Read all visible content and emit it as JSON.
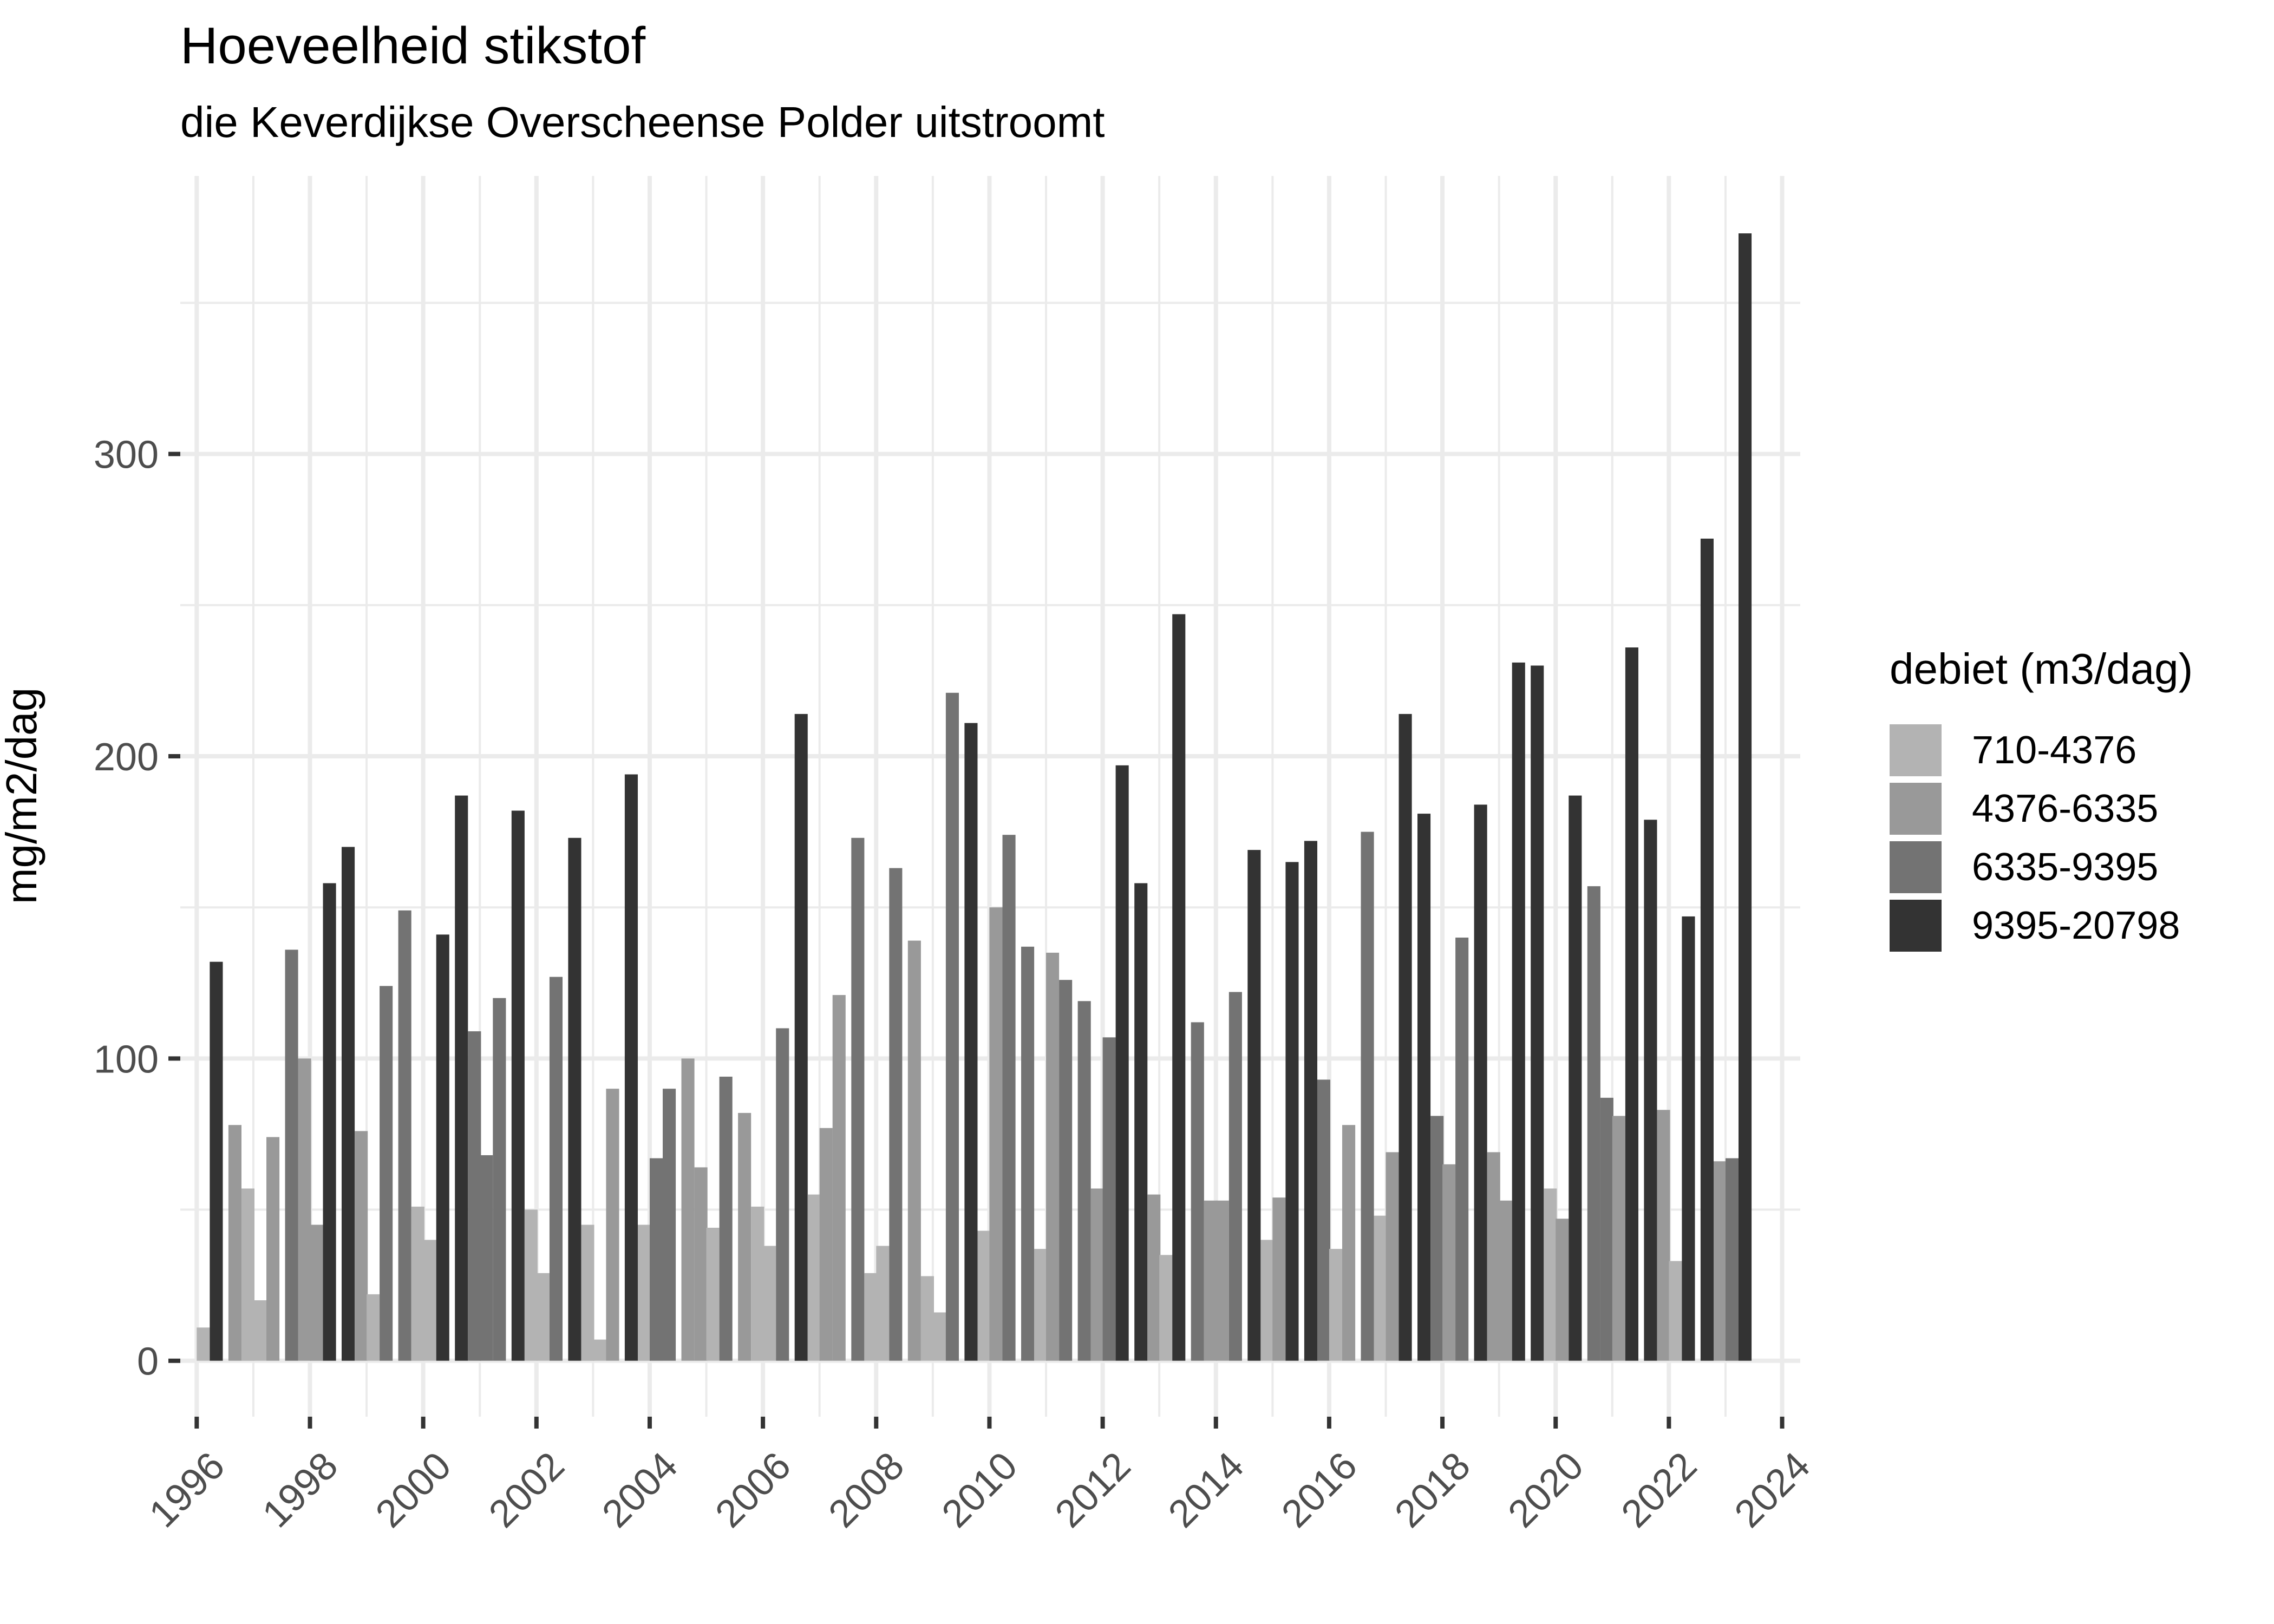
{
  "chart_data": {
    "type": "bar",
    "title": "Hoeveelheid stikstof",
    "subtitle": "die Keverdijkse Overscheense Polder uitstroomt",
    "xlabel": "",
    "ylabel": "mg/m2/dag",
    "xlim": [
      1995.71,
      2024.32
    ],
    "ylim": [
      -18.5,
      392
    ],
    "x_ticks": [
      1996,
      1998,
      2000,
      2002,
      2004,
      2006,
      2008,
      2010,
      2012,
      2014,
      2016,
      2018,
      2020,
      2022,
      2024
    ],
    "y_ticks": [
      0,
      100,
      200,
      300
    ],
    "y_minor_gridlines": [
      50,
      150,
      250,
      350
    ],
    "grid": true,
    "legend_position": "right",
    "bar_width_years": 0.23,
    "quarter_offsets": [
      0.0,
      0.23,
      0.56,
      0.79
    ],
    "legend": {
      "title": "debiet (m3/dag)",
      "entries": [
        {
          "key": "q1",
          "label": "710-4376",
          "color": "#b3b3b3"
        },
        {
          "key": "q2",
          "label": "4376-6335",
          "color": "#999999"
        },
        {
          "key": "q3",
          "label": "6335-9395",
          "color": "#737373"
        },
        {
          "key": "q4",
          "label": "9395-20798",
          "color": "#333333"
        }
      ]
    },
    "series": [
      {
        "year": 1996,
        "values": [
          11,
          132,
          78,
          57
        ],
        "classes": [
          "q1",
          "q4",
          "q2",
          "q1"
        ]
      },
      {
        "year": 1997,
        "values": [
          20,
          74,
          136,
          100
        ],
        "classes": [
          "q1",
          "q2",
          "q3",
          "q2"
        ]
      },
      {
        "year": 1998,
        "values": [
          45,
          158,
          170,
          76
        ],
        "classes": [
          "q2",
          "q4",
          "q4",
          "q2"
        ]
      },
      {
        "year": 1999,
        "values": [
          22,
          124,
          149,
          51
        ],
        "classes": [
          "q1",
          "q3",
          "q3",
          "q1"
        ]
      },
      {
        "year": 2000,
        "values": [
          40,
          141,
          187,
          109
        ],
        "classes": [
          "q1",
          "q4",
          "q4",
          "q3"
        ]
      },
      {
        "year": 2001,
        "values": [
          68,
          120,
          182,
          50
        ],
        "classes": [
          "q3",
          "q3",
          "q4",
          "q1"
        ]
      },
      {
        "year": 2002,
        "values": [
          29,
          127,
          173,
          45
        ],
        "classes": [
          "q1",
          "q3",
          "q4",
          "q1"
        ]
      },
      {
        "year": 2003,
        "values": [
          7,
          90,
          194,
          45
        ],
        "classes": [
          "q1",
          "q2",
          "q4",
          "q1"
        ]
      },
      {
        "year": 2004,
        "values": [
          67,
          90,
          100,
          64
        ],
        "classes": [
          "q3",
          "q3",
          "q2",
          "q2"
        ]
      },
      {
        "year": 2005,
        "values": [
          44,
          94,
          82,
          51
        ],
        "classes": [
          "q1",
          "q3",
          "q2",
          "q1"
        ]
      },
      {
        "year": 2006,
        "values": [
          38,
          110,
          214,
          55
        ],
        "classes": [
          "q1",
          "q3",
          "q4",
          "q1"
        ]
      },
      {
        "year": 2007,
        "values": [
          77,
          121,
          173,
          29
        ],
        "classes": [
          "q2",
          "q2",
          "q3",
          "q1"
        ]
      },
      {
        "year": 2008,
        "values": [
          38,
          163,
          139,
          28
        ],
        "classes": [
          "q1",
          "q3",
          "q2",
          "q1"
        ]
      },
      {
        "year": 2009,
        "values": [
          16,
          221,
          211,
          43
        ],
        "classes": [
          "q1",
          "q3",
          "q4",
          "q1"
        ]
      },
      {
        "year": 2010,
        "values": [
          150,
          174,
          137,
          37
        ],
        "classes": [
          "q2",
          "q3",
          "q3",
          "q1"
        ]
      },
      {
        "year": 2011,
        "values": [
          135,
          126,
          119,
          57
        ],
        "classes": [
          "q2",
          "q3",
          "q3",
          "q2"
        ]
      },
      {
        "year": 2012,
        "values": [
          107,
          197,
          158,
          55
        ],
        "classes": [
          "q3",
          "q4",
          "q4",
          "q2"
        ]
      },
      {
        "year": 2013,
        "values": [
          35,
          247,
          112,
          53
        ],
        "classes": [
          "q1",
          "q4",
          "q3",
          "q2"
        ]
      },
      {
        "year": 2014,
        "values": [
          53,
          122,
          169,
          40
        ],
        "classes": [
          "q2",
          "q3",
          "q4",
          "q1"
        ]
      },
      {
        "year": 2015,
        "values": [
          54,
          165,
          172,
          93
        ],
        "classes": [
          "q2",
          "q4",
          "q4",
          "q3"
        ]
      },
      {
        "year": 2016,
        "values": [
          37,
          78,
          175,
          48
        ],
        "classes": [
          "q1",
          "q2",
          "q3",
          "q1"
        ]
      },
      {
        "year": 2017,
        "values": [
          69,
          214,
          181,
          81
        ],
        "classes": [
          "q2",
          "q4",
          "q4",
          "q3"
        ]
      },
      {
        "year": 2018,
        "values": [
          65,
          140,
          184,
          69
        ],
        "classes": [
          "q2",
          "q3",
          "q4",
          "q2"
        ]
      },
      {
        "year": 2019,
        "values": [
          53,
          231,
          230,
          57
        ],
        "classes": [
          "q2",
          "q4",
          "q4",
          "q1"
        ]
      },
      {
        "year": 2020,
        "values": [
          47,
          187,
          157,
          87
        ],
        "classes": [
          "q2",
          "q4",
          "q3",
          "q3"
        ]
      },
      {
        "year": 2021,
        "values": [
          81,
          236,
          179,
          83
        ],
        "classes": [
          "q2",
          "q4",
          "q4",
          "q2"
        ]
      },
      {
        "year": 2022,
        "values": [
          33,
          147,
          272,
          66
        ],
        "classes": [
          "q1",
          "q4",
          "q4",
          "q2"
        ]
      },
      {
        "year": 2023,
        "values": [
          67,
          373
        ],
        "classes": [
          "q3",
          "q4"
        ]
      }
    ]
  }
}
